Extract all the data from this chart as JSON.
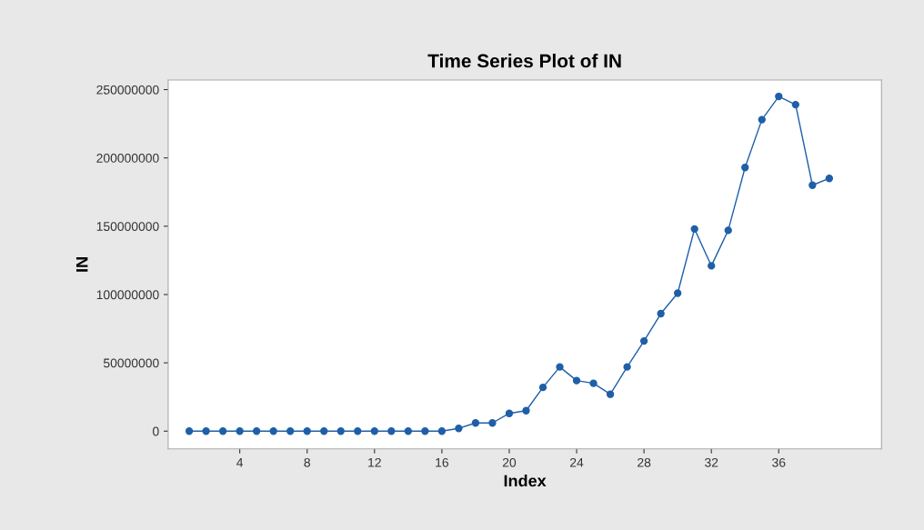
{
  "chart_data": {
    "type": "line",
    "title": "Time Series Plot of IN",
    "xlabel": "Index",
    "ylabel": "IN",
    "x": [
      1,
      2,
      3,
      4,
      5,
      6,
      7,
      8,
      9,
      10,
      11,
      12,
      13,
      14,
      15,
      16,
      17,
      18,
      19,
      20,
      21,
      22,
      23,
      24,
      25,
      26,
      27,
      28,
      29,
      30,
      31,
      32,
      33,
      34,
      35,
      36,
      37,
      38,
      39
    ],
    "series": [
      {
        "color": "#1f5fa8",
        "values": [
          0,
          0,
          0,
          0,
          0,
          0,
          0,
          0,
          0,
          0,
          0,
          0,
          0,
          0,
          0,
          0,
          2000000,
          6000000,
          6000000,
          13000000,
          15000000,
          32000000,
          47000000,
          37000000,
          35000000,
          27000000,
          47000000,
          66000000,
          86000000,
          101000000,
          148000000,
          121000000,
          147000000,
          193000000,
          228000000,
          245000000,
          239000000,
          180000000,
          185000000
        ]
      }
    ],
    "xlim": [
      -0.25,
      42.1
    ],
    "ylim": [
      -13000000,
      257000000
    ],
    "xticks": [
      4,
      8,
      12,
      16,
      20,
      24,
      28,
      32,
      36
    ],
    "yticks": [
      0,
      50000000,
      100000000,
      150000000,
      200000000,
      250000000
    ],
    "marker": "circle",
    "line_style": "solid",
    "grid": false,
    "legend": false
  }
}
